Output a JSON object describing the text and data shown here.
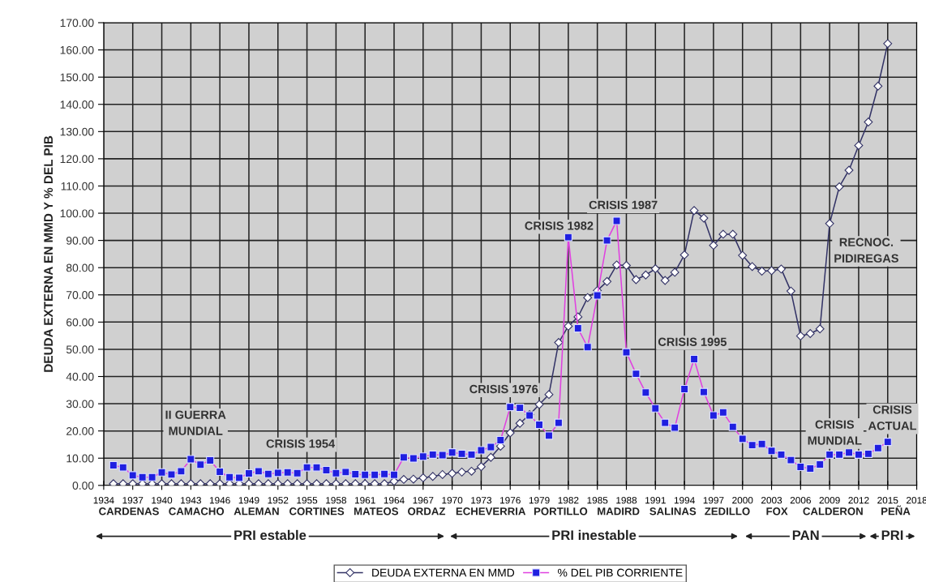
{
  "chart_data": {
    "type": "line",
    "ylabel": "DEUDA EXTERNA EN MMD Y % DEL PIB",
    "x": [
      1935,
      1936,
      1937,
      1938,
      1939,
      1940,
      1941,
      1942,
      1943,
      1944,
      1945,
      1946,
      1947,
      1948,
      1949,
      1950,
      1951,
      1952,
      1953,
      1954,
      1955,
      1956,
      1957,
      1958,
      1959,
      1960,
      1961,
      1962,
      1963,
      1964,
      1965,
      1966,
      1967,
      1968,
      1969,
      1970,
      1971,
      1972,
      1973,
      1974,
      1975,
      1976,
      1977,
      1978,
      1979,
      1980,
      1981,
      1982,
      1983,
      1984,
      1985,
      1986,
      1987,
      1988,
      1989,
      1990,
      1991,
      1992,
      1993,
      1994,
      1995,
      1996,
      1997,
      1998,
      1999,
      2000,
      2001,
      2002,
      2003,
      2004,
      2005,
      2006,
      2007,
      2008,
      2009,
      2010,
      2011,
      2012,
      2013,
      2014,
      2015
    ],
    "series": [
      {
        "name": "DEUDA EXTERNA EN MMD",
        "color": "#333366",
        "marker": "diamond",
        "values": [
          0.6,
          0.6,
          0.6,
          0.6,
          0.6,
          0.6,
          0.6,
          0.6,
          0.6,
          0.6,
          0.6,
          0.6,
          0.6,
          0.6,
          0.6,
          0.6,
          0.6,
          0.6,
          0.6,
          0.6,
          0.6,
          0.6,
          0.6,
          0.6,
          0.6,
          0.6,
          0.6,
          0.6,
          0.6,
          1.5,
          2.2,
          2.3,
          2.8,
          3.3,
          4.0,
          4.4,
          4.9,
          5.2,
          6.9,
          10.3,
          14.4,
          19.3,
          22.8,
          26.0,
          29.7,
          33.4,
          52.5,
          58.5,
          61.9,
          69.0,
          71.6,
          74.9,
          81.0,
          80.8,
          75.6,
          77.3,
          79.6,
          75.3,
          78.3,
          84.7,
          101.0,
          98.2,
          88.2,
          92.3,
          92.3,
          84.5,
          80.4,
          78.7,
          78.9,
          79.5,
          71.4,
          54.9,
          55.8,
          57.5,
          96.2,
          109.7,
          115.8,
          124.9,
          133.5,
          146.7,
          162.3
        ]
      },
      {
        "name": "% DEL PIB CORRIENTE",
        "color": "#e040e0",
        "marker": "square",
        "values": [
          7.4,
          6.6,
          3.7,
          3.0,
          3.0,
          4.8,
          4.0,
          5.2,
          9.6,
          7.6,
          9.2,
          5.0,
          3.0,
          2.8,
          4.4,
          5.2,
          4.2,
          4.6,
          4.8,
          4.5,
          6.6,
          6.6,
          5.6,
          4.5,
          4.9,
          4.1,
          3.9,
          3.9,
          4.2,
          3.9,
          10.3,
          9.9,
          10.6,
          11.3,
          11.1,
          12.1,
          11.6,
          11.3,
          12.9,
          14.1,
          16.6,
          28.8,
          28.5,
          25.7,
          22.3,
          18.3,
          23.0,
          91.2,
          57.7,
          50.8,
          69.8,
          90.0,
          97.2,
          48.9,
          41.0,
          34.1,
          28.3,
          23.0,
          21.2,
          35.4,
          46.4,
          34.3,
          25.7,
          26.8,
          21.5,
          17.1,
          14.8,
          15.2,
          12.7,
          11.3,
          9.3,
          6.8,
          6.2,
          7.7,
          11.3,
          11.3,
          12.1,
          11.3,
          11.6,
          13.7,
          16.0
        ]
      }
    ],
    "xlim": [
      1934,
      2018
    ],
    "xticks": [
      1934,
      1937,
      1940,
      1943,
      1946,
      1949,
      1952,
      1955,
      1958,
      1961,
      1964,
      1967,
      1970,
      1973,
      1976,
      1979,
      1982,
      1985,
      1988,
      1991,
      1994,
      1997,
      2000,
      2003,
      2006,
      2009,
      2012,
      2015,
      2018
    ],
    "ylim": [
      0,
      170
    ],
    "yticks": [
      {
        "value": 0,
        "label": "0.00"
      },
      {
        "value": 10,
        "label": "10.00"
      },
      {
        "value": 20,
        "label": "20.00"
      },
      {
        "value": 30,
        "label": "30.00"
      },
      {
        "value": 40,
        "label": "40.00"
      },
      {
        "value": 50,
        "label": "50.00"
      },
      {
        "value": 60,
        "label": "60.00"
      },
      {
        "value": 70,
        "label": "70.00"
      },
      {
        "value": 80,
        "label": "80.00"
      },
      {
        "value": 90,
        "label": "90.00"
      },
      {
        "value": 100,
        "label": "100.00"
      },
      {
        "value": 110,
        "label": "110.00"
      },
      {
        "value": 120,
        "label": "120.00"
      },
      {
        "value": 130,
        "label": "130.00"
      },
      {
        "value": 140,
        "label": "140.00"
      },
      {
        "value": 150,
        "label": "150.00"
      },
      {
        "value": 160,
        "label": "160.00"
      },
      {
        "value": 170,
        "label": "170.00"
      }
    ],
    "grid": true,
    "legend": "bottom",
    "annotations": [
      "II GUERRA\nMUNDIAL",
      "CRISIS 1954",
      "CRISIS 1976",
      "CRISIS 1982",
      "CRISIS 1987",
      "CRISIS 1995",
      "RECNOC.\nPIDIREGAS",
      "CRISIS\nMUNDIAL",
      "CRISIS\nACTUAL",
      "CARDENAS",
      "CAMACHO",
      "ALEMAN",
      "CORTINES",
      "MATEOS",
      "ORDAZ",
      "ECHEVERRIA",
      "PORTILLO",
      "MADIRD",
      "SALINAS",
      "ZEDILLO",
      "FOX",
      "CALDERON",
      "PEÑA",
      "PRI estable",
      "PRI inestable",
      "PAN",
      "PRI"
    ]
  }
}
